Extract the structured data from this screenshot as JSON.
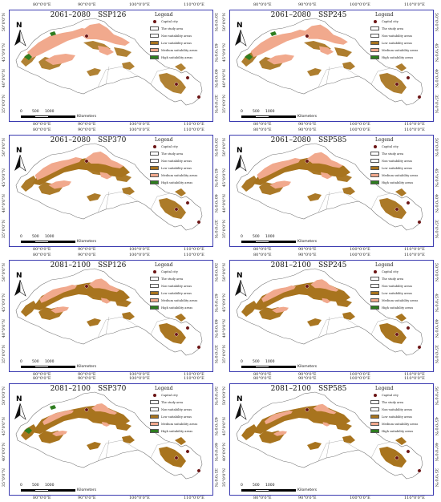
{
  "figure": {
    "panels": [
      {
        "period": "2061–2080",
        "scenario": "SSP126",
        "variant": 0
      },
      {
        "period": "2061–2080",
        "scenario": "SSP245",
        "variant": 1
      },
      {
        "period": "2061–2080",
        "scenario": "SSP370",
        "variant": 2
      },
      {
        "period": "2061–2080",
        "scenario": "SSP585",
        "variant": 3
      },
      {
        "period": "2081–2100",
        "scenario": "SSP126",
        "variant": 4
      },
      {
        "period": "2081–2100",
        "scenario": "SSP245",
        "variant": 5
      },
      {
        "period": "2081–2100",
        "scenario": "SSP370",
        "variant": 6
      },
      {
        "period": "2081–2100",
        "scenario": "SSP585",
        "variant": 7
      }
    ],
    "longitude_labels": [
      "80°0'0\"E",
      "90°0'0\"E",
      "100°0'0\"E",
      "110°0'0\"E"
    ],
    "latitude_labels": [
      "50°0'0\"N",
      "45°0'0\"N",
      "40°0'0\"N",
      "35°0'0\"N"
    ],
    "north_label": "N",
    "legend": {
      "title": "Legend",
      "items": [
        {
          "label": "Capital city",
          "kind": "dot",
          "color": "#6b1414"
        },
        {
          "label": "The study area",
          "kind": "box",
          "color": "#ffffff"
        },
        {
          "label": "Non-suitability areas",
          "kind": "box",
          "color": "#ffffff"
        },
        {
          "label": "Low suitability areas",
          "kind": "box",
          "color": "#a8741e"
        },
        {
          "label": "Medium suitability areas",
          "kind": "box",
          "color": "#f1a98d"
        },
        {
          "label": "High suitability areas",
          "kind": "box",
          "color": "#2e7d1f"
        }
      ]
    },
    "scale": {
      "ticks": [
        "0",
        "500",
        "1000"
      ],
      "unit": "Kilometers"
    },
    "colors": {
      "low": "#a8741e",
      "medium": "#f1a98d",
      "high": "#2e7d1f",
      "capital": "#6b1414",
      "frame": "#3a3ab0"
    }
  }
}
